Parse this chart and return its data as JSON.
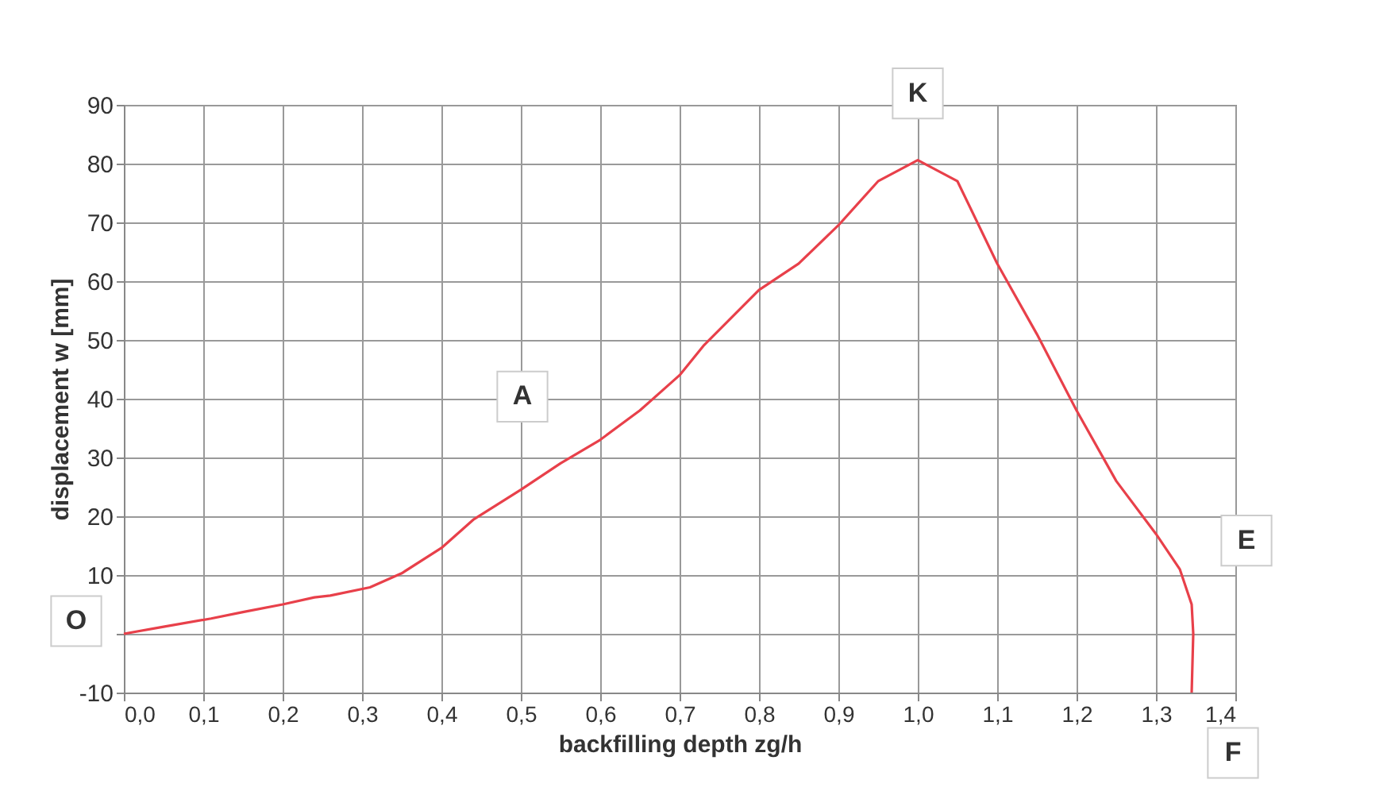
{
  "chart_data": {
    "type": "line",
    "xlabel": "backfilling depth  zg/h",
    "ylabel": "displacement  w  [mm]",
    "series": [
      {
        "color": "#e8404a",
        "x": [
          0,
          0.05,
          0.11,
          0.15,
          0.2,
          0.24,
          0.26,
          0.31,
          0.35,
          0.4,
          0.44,
          0.5,
          0.55,
          0.6,
          0.65,
          0.7,
          0.73,
          0.8,
          0.85,
          0.9,
          0.95,
          1.0,
          1.05,
          1.1,
          1.15,
          1.2,
          1.25,
          1.3,
          1.33,
          1.345,
          1.347,
          1.345
        ],
        "values": [
          0,
          1.2,
          2.6,
          3.7,
          5,
          6.2,
          6.5,
          7.9,
          10.3,
          14.6,
          19.4,
          24.5,
          29,
          33,
          38,
          44,
          49,
          58.5,
          63,
          69.5,
          77,
          80.6,
          77,
          63,
          51,
          38,
          26,
          17,
          11,
          5,
          0,
          -10
        ]
      }
    ],
    "xlim": [
      0,
      1.4
    ],
    "ylim": [
      -10,
      90
    ],
    "xticks": [
      {
        "value": 0,
        "label": "0,0"
      },
      {
        "value": 0.1,
        "label": "0,1"
      },
      {
        "value": 0.2,
        "label": "0,2"
      },
      {
        "value": 0.3,
        "label": "0,3"
      },
      {
        "value": 0.4,
        "label": "0,4"
      },
      {
        "value": 0.5,
        "label": "0,5"
      },
      {
        "value": 0.6,
        "label": "0,6"
      },
      {
        "value": 0.7,
        "label": "0,7"
      },
      {
        "value": 0.8,
        "label": "0,8"
      },
      {
        "value": 0.9,
        "label": "0,9"
      },
      {
        "value": 1.0,
        "label": "1,0"
      },
      {
        "value": 1.1,
        "label": "1,1"
      },
      {
        "value": 1.2,
        "label": "1,2"
      },
      {
        "value": 1.3,
        "label": "1,3"
      },
      {
        "value": 1.4,
        "label": "1,4"
      }
    ],
    "yticks": [
      -10,
      {
        "value": 0,
        "label": null
      },
      10,
      20,
      30,
      40,
      50,
      60,
      70,
      80,
      90
    ],
    "annotations": [
      {
        "text": "O",
        "x": 0,
        "y": 0
      },
      {
        "text": "A",
        "x": 0.55,
        "y": 29
      },
      {
        "text": "K",
        "x": 1.0,
        "y": 80.6
      },
      {
        "text": "E",
        "x": 1.33,
        "y": 11
      },
      {
        "text": "F",
        "x": 1.345,
        "y": -10
      }
    ],
    "grid": true,
    "marker": "none",
    "line_style": "solid"
  }
}
